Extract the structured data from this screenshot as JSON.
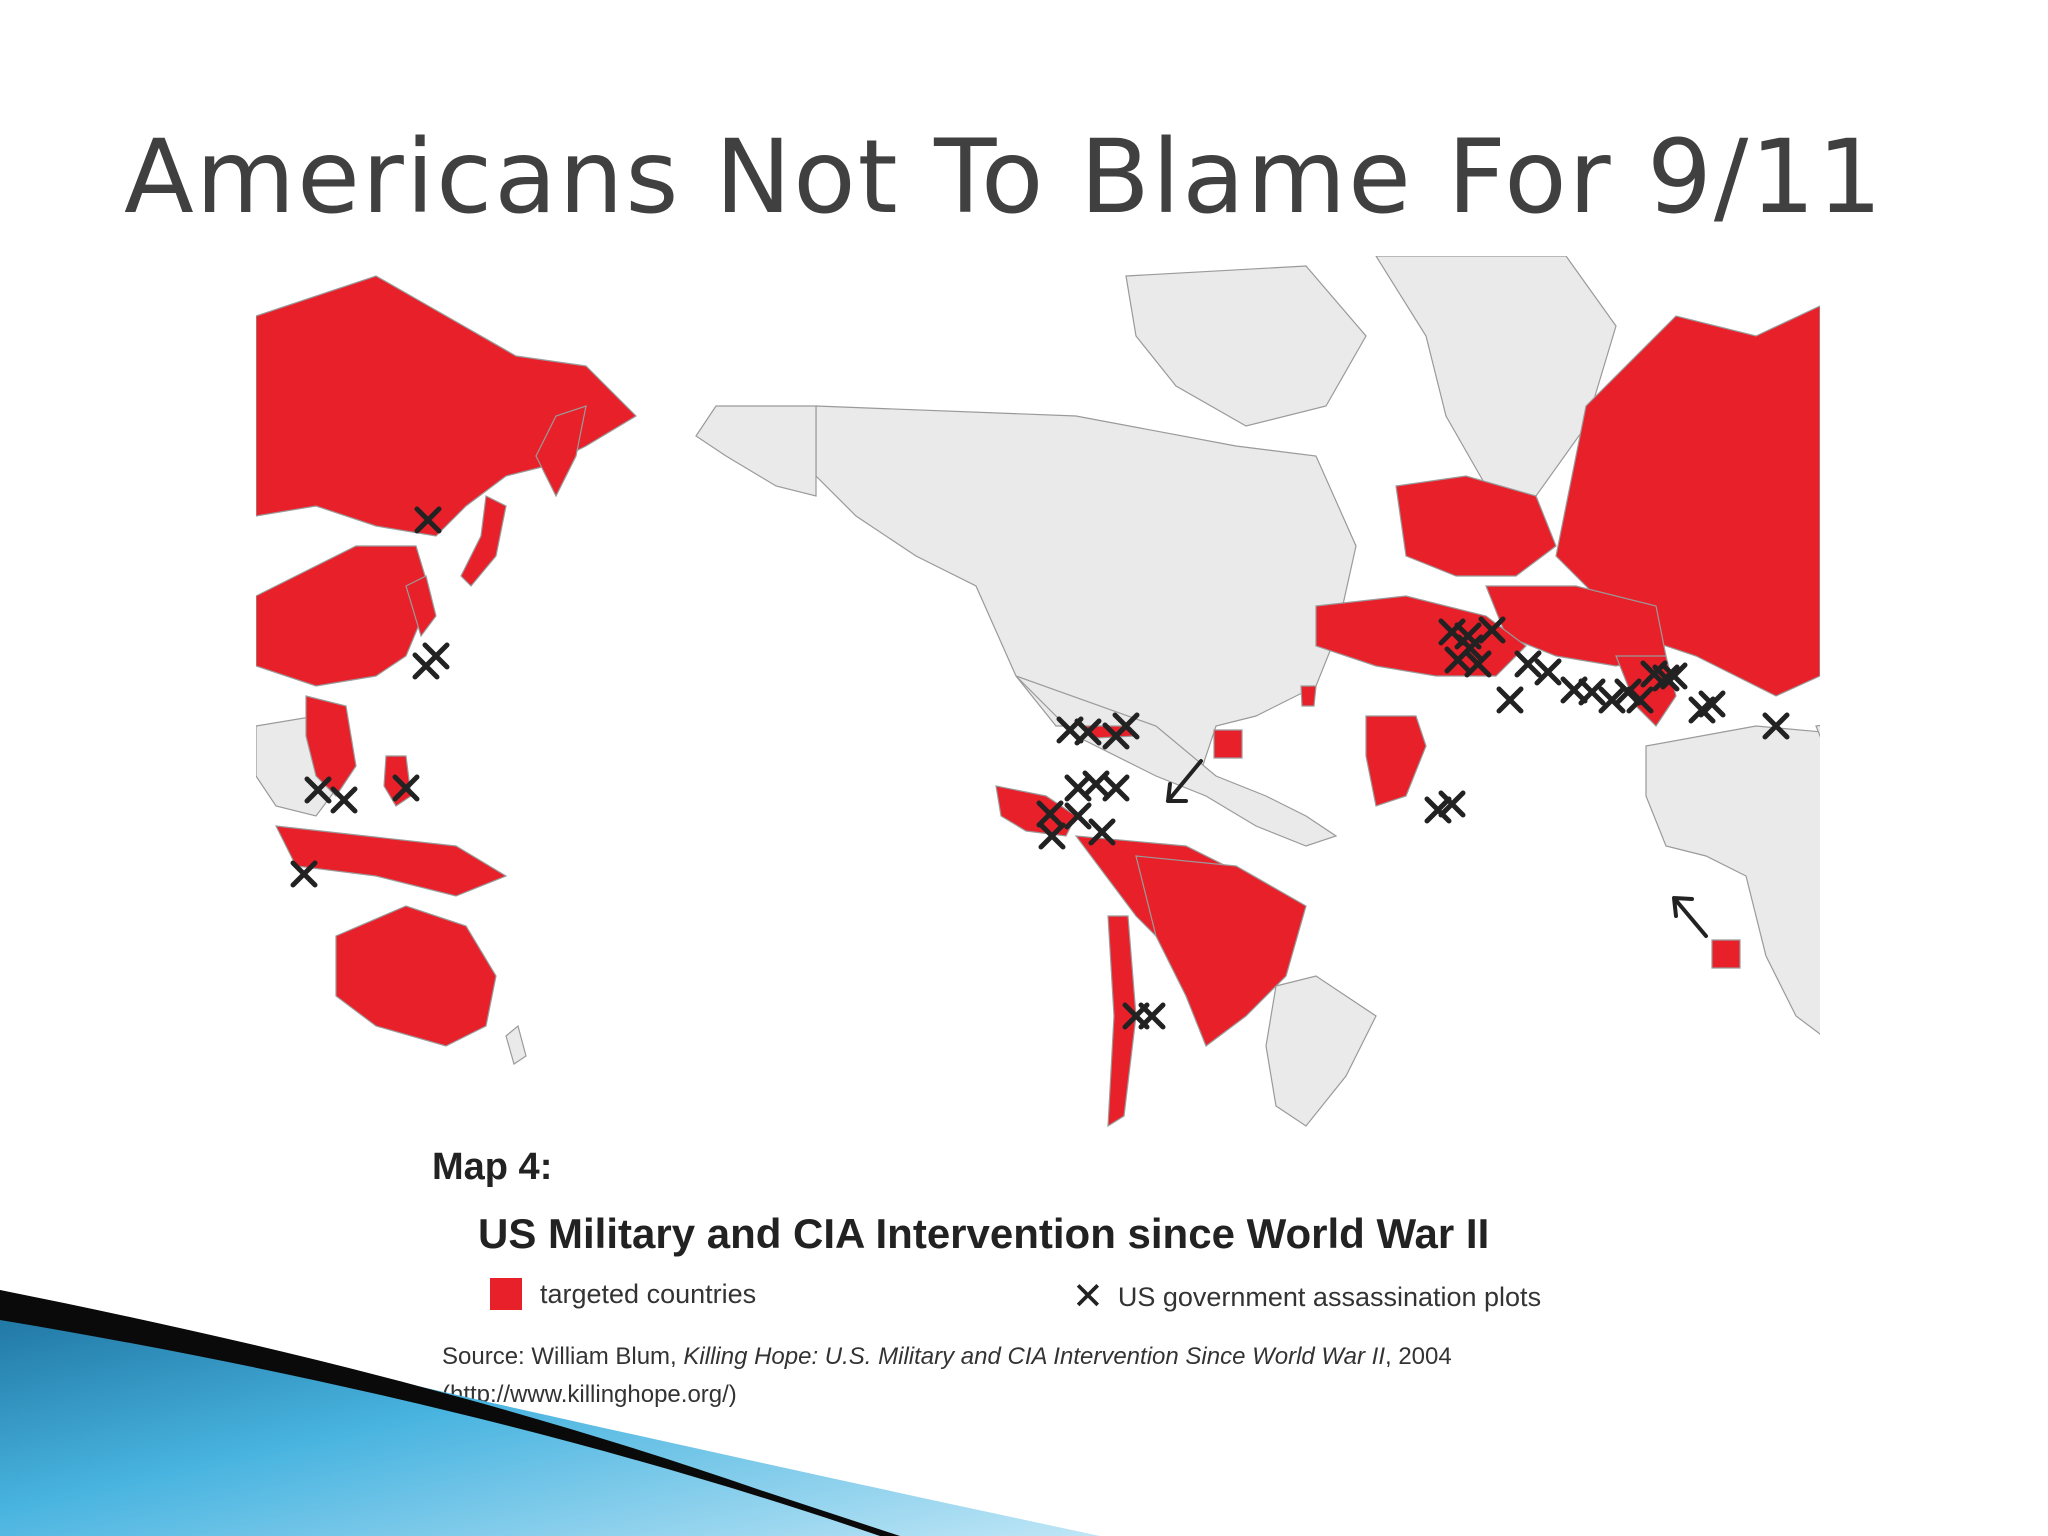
{
  "slide": {
    "title": "Americans Not To Blame For 9/11"
  },
  "map": {
    "caption_heading": "Map 4:",
    "caption_title": "US Military and CIA Intervention since World War II",
    "legend": {
      "targeted_label": "targeted countries",
      "plots_symbol": "✕",
      "plots_label": "US government assassination plots"
    },
    "source": {
      "prefix": "Source:  William Blum, ",
      "book_title": "Killing Hope: U.S. Military and CIA Intervention Since World War II",
      "suffix": ", 2004",
      "url": "(http://www.killinghope.org/)"
    },
    "colors": {
      "targeted": "#e8202a",
      "land": "#eaeaea",
      "border": "#9a9a9a",
      "marker": "#222222"
    }
  },
  "colors": {
    "title": "#404040",
    "accent_dark": "#0a0a0a",
    "accent_blue": "#2a8fc0",
    "accent_light": "#8fd0ee"
  }
}
